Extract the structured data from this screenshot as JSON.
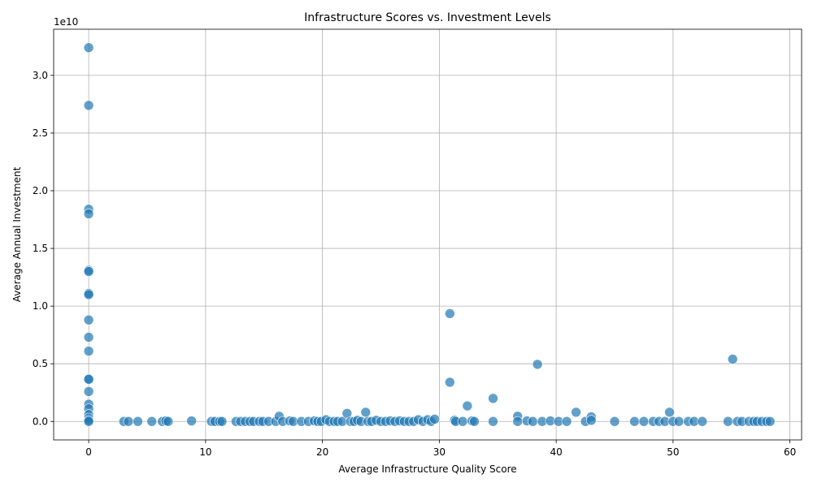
{
  "chart_data": {
    "type": "scatter",
    "title": "Infrastructure Scores vs. Investment Levels",
    "xlabel": "Average Infrastructure Quality Score",
    "ylabel": "Average Annual Investment",
    "offset_label": "1e10",
    "xlim": [
      -3,
      61
    ],
    "ylim": [
      -1600000000.0,
      34000000000.0
    ],
    "xticks": [
      0,
      10,
      20,
      30,
      40,
      50,
      60
    ],
    "yticks": [
      0,
      5000000000.0,
      10000000000.0,
      15000000000.0,
      20000000000.0,
      25000000000.0,
      30000000000.0
    ],
    "ytick_labels": [
      "0.0",
      "0.5",
      "1.0",
      "1.5",
      "2.0",
      "2.5",
      "3.0"
    ],
    "grid": true,
    "color": "#1f77b4",
    "points": [
      {
        "x": 0,
        "y": 32400000000.0
      },
      {
        "x": 0,
        "y": 27400000000.0
      },
      {
        "x": 0,
        "y": 18400000000.0
      },
      {
        "x": 0,
        "y": 18000000000.0
      },
      {
        "x": 0,
        "y": 13100000000.0
      },
      {
        "x": 0,
        "y": 13000000000.0
      },
      {
        "x": 0,
        "y": 11100000000.0
      },
      {
        "x": 0,
        "y": 11000000000.0
      },
      {
        "x": 0,
        "y": 8800000000.0
      },
      {
        "x": 0,
        "y": 7300000000.0
      },
      {
        "x": 0,
        "y": 6100000000.0
      },
      {
        "x": 0,
        "y": 3700000000.0
      },
      {
        "x": 0,
        "y": 3650000000.0
      },
      {
        "x": 0,
        "y": 2600000000.0
      },
      {
        "x": 0,
        "y": 1500000000.0
      },
      {
        "x": 0,
        "y": 1100000000.0
      },
      {
        "x": 0,
        "y": 600000000.0
      },
      {
        "x": 0,
        "y": 300000000.0
      },
      {
        "x": 0,
        "y": 100000000.0
      },
      {
        "x": 0,
        "y": 0
      },
      {
        "x": 3.0,
        "y": 0
      },
      {
        "x": 3.4,
        "y": 0
      },
      {
        "x": 4.2,
        "y": 0
      },
      {
        "x": 5.4,
        "y": 0
      },
      {
        "x": 6.3,
        "y": 0
      },
      {
        "x": 6.6,
        "y": 50000000.0
      },
      {
        "x": 6.8,
        "y": 0
      },
      {
        "x": 8.8,
        "y": 50000000.0
      },
      {
        "x": 10.5,
        "y": 0
      },
      {
        "x": 10.8,
        "y": 0
      },
      {
        "x": 11.2,
        "y": 0
      },
      {
        "x": 11.4,
        "y": 0
      },
      {
        "x": 12.6,
        "y": 0
      },
      {
        "x": 13.0,
        "y": 0
      },
      {
        "x": 13.4,
        "y": 0
      },
      {
        "x": 13.8,
        "y": 0
      },
      {
        "x": 14.1,
        "y": 0
      },
      {
        "x": 14.6,
        "y": 0
      },
      {
        "x": 14.9,
        "y": 0
      },
      {
        "x": 15.4,
        "y": 0
      },
      {
        "x": 16.0,
        "y": 0
      },
      {
        "x": 16.3,
        "y": 450000000.0
      },
      {
        "x": 16.6,
        "y": 0
      },
      {
        "x": 17.2,
        "y": 50000000.0
      },
      {
        "x": 17.5,
        "y": 0
      },
      {
        "x": 18.2,
        "y": 0
      },
      {
        "x": 18.8,
        "y": 0
      },
      {
        "x": 19.3,
        "y": 50000000.0
      },
      {
        "x": 19.6,
        "y": 0
      },
      {
        "x": 19.9,
        "y": 0
      },
      {
        "x": 20.3,
        "y": 150000000.0
      },
      {
        "x": 20.6,
        "y": 0
      },
      {
        "x": 21.0,
        "y": 0
      },
      {
        "x": 21.3,
        "y": 0
      },
      {
        "x": 21.7,
        "y": 0
      },
      {
        "x": 22.1,
        "y": 700000000.0
      },
      {
        "x": 22.4,
        "y": 0
      },
      {
        "x": 22.7,
        "y": 0
      },
      {
        "x": 23.0,
        "y": 100000000.0
      },
      {
        "x": 23.3,
        "y": 0
      },
      {
        "x": 23.7,
        "y": 800000000.0
      },
      {
        "x": 23.9,
        "y": 0
      },
      {
        "x": 24.2,
        "y": 0
      },
      {
        "x": 24.6,
        "y": 100000000.0
      },
      {
        "x": 25.0,
        "y": 0
      },
      {
        "x": 25.4,
        "y": 0
      },
      {
        "x": 25.8,
        "y": 50000000.0
      },
      {
        "x": 26.2,
        "y": 0
      },
      {
        "x": 26.6,
        "y": 50000000.0
      },
      {
        "x": 27.0,
        "y": 0
      },
      {
        "x": 27.4,
        "y": 0
      },
      {
        "x": 27.8,
        "y": 0
      },
      {
        "x": 28.2,
        "y": 150000000.0
      },
      {
        "x": 28.6,
        "y": 0
      },
      {
        "x": 29.0,
        "y": 150000000.0
      },
      {
        "x": 29.3,
        "y": 0
      },
      {
        "x": 29.6,
        "y": 200000000.0
      },
      {
        "x": 30.9,
        "y": 9350000000.0
      },
      {
        "x": 30.9,
        "y": 3400000000.0
      },
      {
        "x": 31.3,
        "y": 100000000.0
      },
      {
        "x": 31.4,
        "y": 0
      },
      {
        "x": 32.0,
        "y": 0
      },
      {
        "x": 32.4,
        "y": 1350000000.0
      },
      {
        "x": 32.8,
        "y": 50000000.0
      },
      {
        "x": 33.0,
        "y": 0
      },
      {
        "x": 34.6,
        "y": 2000000000.0
      },
      {
        "x": 34.6,
        "y": 0
      },
      {
        "x": 36.7,
        "y": 450000000.0
      },
      {
        "x": 36.7,
        "y": 0
      },
      {
        "x": 37.5,
        "y": 50000000.0
      },
      {
        "x": 38.0,
        "y": 0
      },
      {
        "x": 38.4,
        "y": 4950000000.0
      },
      {
        "x": 38.8,
        "y": 0
      },
      {
        "x": 39.5,
        "y": 50000000.0
      },
      {
        "x": 40.2,
        "y": 0
      },
      {
        "x": 40.9,
        "y": 0
      },
      {
        "x": 41.7,
        "y": 800000000.0
      },
      {
        "x": 42.5,
        "y": 0
      },
      {
        "x": 43.0,
        "y": 400000000.0
      },
      {
        "x": 43.0,
        "y": 100000000.0
      },
      {
        "x": 45.0,
        "y": 0
      },
      {
        "x": 46.7,
        "y": 0
      },
      {
        "x": 47.5,
        "y": 0
      },
      {
        "x": 48.3,
        "y": 0
      },
      {
        "x": 48.8,
        "y": 0
      },
      {
        "x": 49.3,
        "y": 0
      },
      {
        "x": 49.7,
        "y": 800000000.0
      },
      {
        "x": 50.0,
        "y": 0
      },
      {
        "x": 50.5,
        "y": 0
      },
      {
        "x": 51.3,
        "y": 0
      },
      {
        "x": 51.8,
        "y": 0
      },
      {
        "x": 52.5,
        "y": 0
      },
      {
        "x": 54.7,
        "y": 0
      },
      {
        "x": 55.1,
        "y": 5400000000.0
      },
      {
        "x": 55.5,
        "y": 0
      },
      {
        "x": 55.9,
        "y": 0
      },
      {
        "x": 56.5,
        "y": 0
      },
      {
        "x": 56.9,
        "y": 0
      },
      {
        "x": 57.2,
        "y": 0
      },
      {
        "x": 57.6,
        "y": 0
      },
      {
        "x": 58.0,
        "y": 0
      },
      {
        "x": 58.3,
        "y": 0
      }
    ]
  }
}
